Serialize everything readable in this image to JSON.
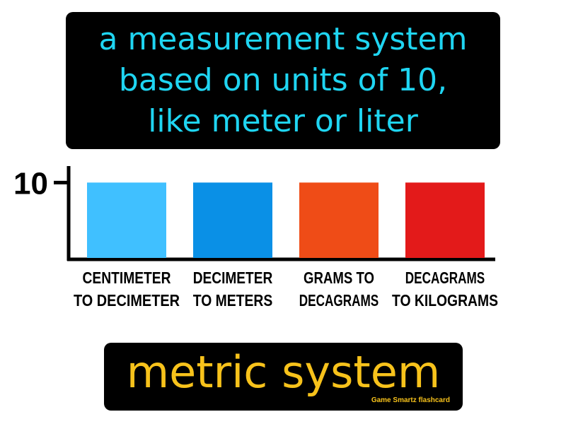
{
  "definition": {
    "lines": [
      "a measurement system",
      "based on units of 10,",
      "like meter or liter"
    ]
  },
  "chart_data": {
    "type": "bar",
    "categories": [
      [
        "CENTIMETER",
        "TO DECIMETER"
      ],
      [
        "DECIMETER",
        "TO METERS"
      ],
      [
        "GRAMS TO",
        "DECAGRAMS"
      ],
      [
        "DECAGRAMS",
        "TO KILOGRAMS"
      ]
    ],
    "values": [
      10,
      10,
      10,
      10
    ],
    "colors": [
      "#40c0ff",
      "#0a90e6",
      "#ef4c17",
      "#e31a1a"
    ],
    "yticks": [
      "10"
    ],
    "ylim": [
      0,
      12
    ],
    "grid": false,
    "legend": "none"
  },
  "term": {
    "title": "metric system",
    "brand": "Game Smartz flashcard"
  }
}
